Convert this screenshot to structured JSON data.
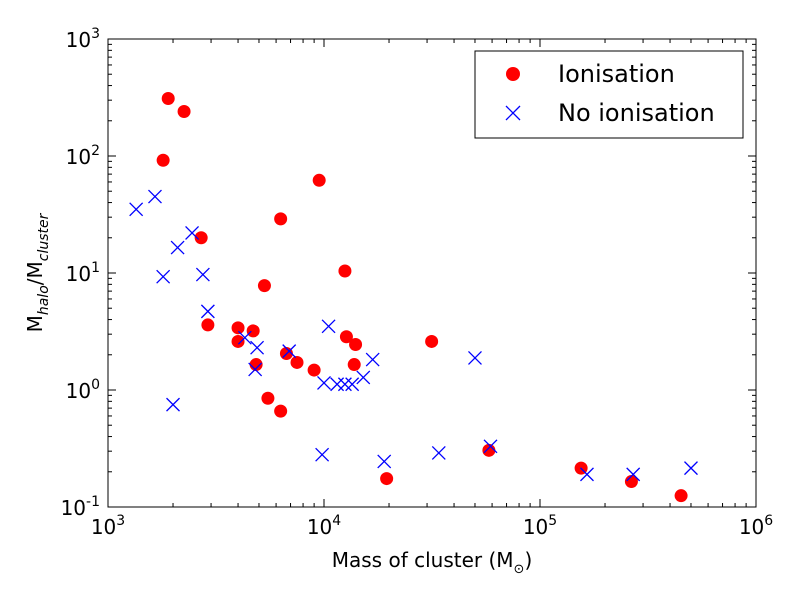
{
  "chart_data": {
    "type": "scatter",
    "xscale": "log",
    "yscale": "log",
    "xlim": [
      1000,
      1000000
    ],
    "ylim": [
      0.1,
      1000
    ],
    "xlabel": "Mass of cluster (M",
    "xlabel_sub": "⊙",
    "xlabel_close": ")",
    "ylabel": "M",
    "ylabel_sub1": "halo",
    "ylabel_mid": "/M",
    "ylabel_sub2": "cluster",
    "xticks": [
      {
        "value": 1000,
        "base": "10",
        "exp": "3"
      },
      {
        "value": 10000,
        "base": "10",
        "exp": "4"
      },
      {
        "value": 100000,
        "base": "10",
        "exp": "5"
      },
      {
        "value": 1000000,
        "base": "10",
        "exp": "6"
      }
    ],
    "yticks": [
      {
        "value": 0.1,
        "base": "10",
        "exp": "-1"
      },
      {
        "value": 1,
        "base": "10",
        "exp": "0"
      },
      {
        "value": 10,
        "base": "10",
        "exp": "1"
      },
      {
        "value": 100,
        "base": "10",
        "exp": "2"
      },
      {
        "value": 1000,
        "base": "10",
        "exp": "3"
      }
    ],
    "legend_position": "top-right",
    "series": [
      {
        "name": "Ionisation",
        "marker": "circle",
        "color": "#ff0000",
        "points": [
          [
            1800,
            92
          ],
          [
            1900,
            310
          ],
          [
            2250,
            240
          ],
          [
            2700,
            20
          ],
          [
            2900,
            3.6
          ],
          [
            4000,
            3.4
          ],
          [
            4000,
            2.6
          ],
          [
            4700,
            3.2
          ],
          [
            4850,
            1.65
          ],
          [
            5300,
            7.8
          ],
          [
            5500,
            0.85
          ],
          [
            6300,
            29
          ],
          [
            6300,
            0.66
          ],
          [
            6700,
            2.05
          ],
          [
            7500,
            1.72
          ],
          [
            9000,
            1.48
          ],
          [
            9500,
            62
          ],
          [
            12500,
            10.4
          ],
          [
            12700,
            2.85
          ],
          [
            13800,
            1.65
          ],
          [
            14000,
            2.45
          ],
          [
            19500,
            0.175
          ],
          [
            31500,
            2.6
          ],
          [
            58000,
            0.305
          ],
          [
            155000,
            0.215
          ],
          [
            265000,
            0.165
          ],
          [
            450000,
            0.125
          ]
        ]
      },
      {
        "name": "No ionisation",
        "marker": "x",
        "color": "#0000ff",
        "points": [
          [
            1350,
            35
          ],
          [
            1650,
            45
          ],
          [
            1800,
            9.3
          ],
          [
            2000,
            0.75
          ],
          [
            2100,
            16.5
          ],
          [
            2450,
            22
          ],
          [
            2750,
            9.7
          ],
          [
            2900,
            4.7
          ],
          [
            4300,
            2.8
          ],
          [
            4800,
            1.5
          ],
          [
            4900,
            2.3
          ],
          [
            6900,
            2.15
          ],
          [
            9800,
            0.28
          ],
          [
            10000,
            1.15
          ],
          [
            10500,
            3.5
          ],
          [
            11500,
            1.12
          ],
          [
            12500,
            1.12
          ],
          [
            13500,
            1.12
          ],
          [
            15200,
            1.28
          ],
          [
            16800,
            1.82
          ],
          [
            19000,
            0.245
          ],
          [
            34000,
            0.29
          ],
          [
            50000,
            1.88
          ],
          [
            59000,
            0.33
          ],
          [
            165000,
            0.19
          ],
          [
            270000,
            0.19
          ],
          [
            500000,
            0.215
          ]
        ]
      }
    ]
  }
}
